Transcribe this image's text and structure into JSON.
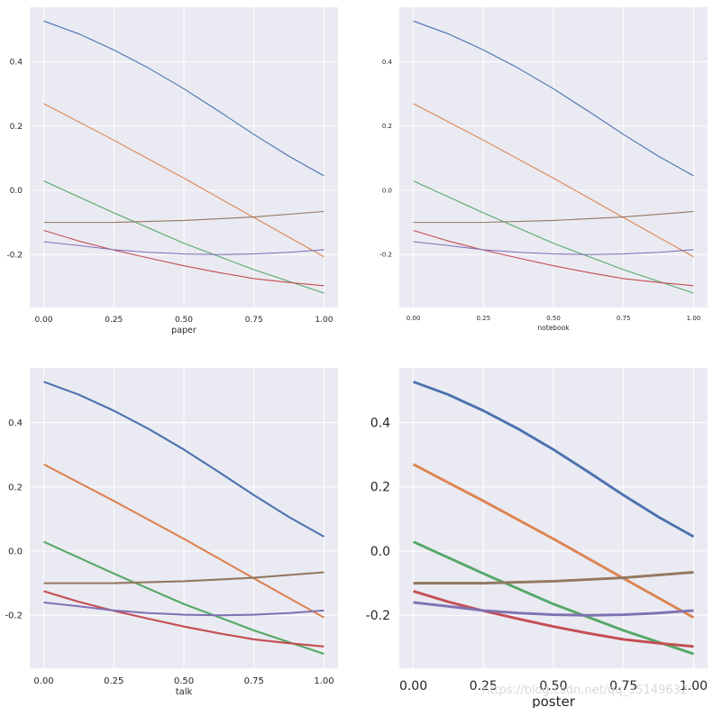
{
  "chart_data": [
    {
      "type": "line",
      "xlabel": "paper",
      "xlim": [
        -0.05,
        1.05
      ],
      "ylim": [
        -0.365,
        0.57
      ],
      "xticks": [
        "0.00",
        "0.25",
        "0.50",
        "0.75",
        "1.00"
      ],
      "yticks": [
        "-0.2",
        "0.0",
        "0.2",
        "0.4"
      ],
      "grid": true,
      "series": [
        {
          "color": "#4c72b0",
          "x": [
            0,
            0.125,
            0.25,
            0.375,
            0.5,
            0.625,
            0.75,
            0.875,
            1
          ],
          "y": [
            0.527,
            0.487,
            0.437,
            0.38,
            0.316,
            0.246,
            0.174,
            0.106,
            0.045
          ]
        },
        {
          "color": "#dd8452",
          "x": [
            0,
            0.25,
            0.5,
            0.75,
            1
          ],
          "y": [
            0.27,
            0.156,
            0.038,
            -0.085,
            -0.207
          ]
        },
        {
          "color": "#55a868",
          "x": [
            0,
            0.25,
            0.5,
            0.75,
            1
          ],
          "y": [
            0.029,
            -0.07,
            -0.165,
            -0.247,
            -0.32
          ]
        },
        {
          "color": "#c44e52",
          "x": [
            0,
            0.125,
            0.25,
            0.375,
            0.5,
            0.625,
            0.75,
            0.875,
            1
          ],
          "y": [
            -0.125,
            -0.158,
            -0.186,
            -0.211,
            -0.235,
            -0.256,
            -0.275,
            -0.287,
            -0.297
          ]
        },
        {
          "color": "#8172b3",
          "x": [
            0,
            0.125,
            0.25,
            0.375,
            0.5,
            0.625,
            0.75,
            0.875,
            1
          ],
          "y": [
            -0.16,
            -0.172,
            -0.185,
            -0.193,
            -0.198,
            -0.2,
            -0.198,
            -0.193,
            -0.185
          ]
        },
        {
          "color": "#937860",
          "x": [
            0,
            0.25,
            0.5,
            0.75,
            1
          ],
          "y": [
            -0.1,
            -0.1,
            -0.094,
            -0.083,
            -0.066
          ]
        }
      ]
    },
    {
      "type": "line",
      "xlabel": "notebook",
      "xlim": [
        -0.05,
        1.05
      ],
      "ylim": [
        -0.365,
        0.57
      ],
      "xticks": [
        "0.00",
        "0.25",
        "0.50",
        "0.75",
        "1.00"
      ],
      "yticks": [
        "-0.2",
        "0.0",
        "0.2",
        "0.4"
      ],
      "grid": true,
      "series": [
        {
          "color": "#4c72b0",
          "x": [
            0,
            0.125,
            0.25,
            0.375,
            0.5,
            0.625,
            0.75,
            0.875,
            1
          ],
          "y": [
            0.527,
            0.487,
            0.437,
            0.38,
            0.316,
            0.246,
            0.174,
            0.106,
            0.045
          ]
        },
        {
          "color": "#dd8452",
          "x": [
            0,
            0.25,
            0.5,
            0.75,
            1
          ],
          "y": [
            0.27,
            0.156,
            0.038,
            -0.085,
            -0.207
          ]
        },
        {
          "color": "#55a868",
          "x": [
            0,
            0.25,
            0.5,
            0.75,
            1
          ],
          "y": [
            0.029,
            -0.07,
            -0.165,
            -0.247,
            -0.32
          ]
        },
        {
          "color": "#c44e52",
          "x": [
            0,
            0.125,
            0.25,
            0.375,
            0.5,
            0.625,
            0.75,
            0.875,
            1
          ],
          "y": [
            -0.125,
            -0.158,
            -0.186,
            -0.211,
            -0.235,
            -0.256,
            -0.275,
            -0.287,
            -0.297
          ]
        },
        {
          "color": "#8172b3",
          "x": [
            0,
            0.125,
            0.25,
            0.375,
            0.5,
            0.625,
            0.75,
            0.875,
            1
          ],
          "y": [
            -0.16,
            -0.172,
            -0.185,
            -0.193,
            -0.198,
            -0.2,
            -0.198,
            -0.193,
            -0.185
          ]
        },
        {
          "color": "#937860",
          "x": [
            0,
            0.25,
            0.5,
            0.75,
            1
          ],
          "y": [
            -0.1,
            -0.1,
            -0.094,
            -0.083,
            -0.066
          ]
        }
      ]
    },
    {
      "type": "line",
      "xlabel": "talk",
      "xlim": [
        -0.05,
        1.05
      ],
      "ylim": [
        -0.365,
        0.57
      ],
      "xticks": [
        "0.00",
        "0.25",
        "0.50",
        "0.75",
        "1.00"
      ],
      "yticks": [
        "-0.2",
        "0.0",
        "0.2",
        "0.4"
      ],
      "grid": true,
      "series": [
        {
          "color": "#4c72b0",
          "x": [
            0,
            0.125,
            0.25,
            0.375,
            0.5,
            0.625,
            0.75,
            0.875,
            1
          ],
          "y": [
            0.527,
            0.487,
            0.437,
            0.38,
            0.316,
            0.246,
            0.174,
            0.106,
            0.045
          ]
        },
        {
          "color": "#dd8452",
          "x": [
            0,
            0.25,
            0.5,
            0.75,
            1
          ],
          "y": [
            0.27,
            0.156,
            0.038,
            -0.085,
            -0.207
          ]
        },
        {
          "color": "#55a868",
          "x": [
            0,
            0.25,
            0.5,
            0.75,
            1
          ],
          "y": [
            0.029,
            -0.07,
            -0.165,
            -0.247,
            -0.32
          ]
        },
        {
          "color": "#c44e52",
          "x": [
            0,
            0.125,
            0.25,
            0.375,
            0.5,
            0.625,
            0.75,
            0.875,
            1
          ],
          "y": [
            -0.125,
            -0.158,
            -0.186,
            -0.211,
            -0.235,
            -0.256,
            -0.275,
            -0.287,
            -0.297
          ]
        },
        {
          "color": "#8172b3",
          "x": [
            0,
            0.125,
            0.25,
            0.375,
            0.5,
            0.625,
            0.75,
            0.875,
            1
          ],
          "y": [
            -0.16,
            -0.172,
            -0.185,
            -0.193,
            -0.198,
            -0.2,
            -0.198,
            -0.193,
            -0.185
          ]
        },
        {
          "color": "#937860",
          "x": [
            0,
            0.25,
            0.5,
            0.75,
            1
          ],
          "y": [
            -0.1,
            -0.1,
            -0.094,
            -0.083,
            -0.066
          ]
        }
      ]
    },
    {
      "type": "line",
      "xlabel": "poster",
      "xlim": [
        -0.05,
        1.05
      ],
      "ylim": [
        -0.365,
        0.57
      ],
      "xticks": [
        "0.00",
        "0.25",
        "0.50",
        "0.75",
        "1.00"
      ],
      "yticks": [
        "-0.2",
        "0.0",
        "0.2",
        "0.4"
      ],
      "grid": true,
      "series": [
        {
          "color": "#4c72b0",
          "x": [
            0,
            0.125,
            0.25,
            0.375,
            0.5,
            0.625,
            0.75,
            0.875,
            1
          ],
          "y": [
            0.527,
            0.487,
            0.437,
            0.38,
            0.316,
            0.246,
            0.174,
            0.106,
            0.045
          ]
        },
        {
          "color": "#dd8452",
          "x": [
            0,
            0.25,
            0.5,
            0.75,
            1
          ],
          "y": [
            0.27,
            0.156,
            0.038,
            -0.085,
            -0.207
          ]
        },
        {
          "color": "#55a868",
          "x": [
            0,
            0.25,
            0.5,
            0.75,
            1
          ],
          "y": [
            0.029,
            -0.07,
            -0.165,
            -0.247,
            -0.32
          ]
        },
        {
          "color": "#c44e52",
          "x": [
            0,
            0.125,
            0.25,
            0.375,
            0.5,
            0.625,
            0.75,
            0.875,
            1
          ],
          "y": [
            -0.125,
            -0.158,
            -0.186,
            -0.211,
            -0.235,
            -0.256,
            -0.275,
            -0.287,
            -0.297
          ]
        },
        {
          "color": "#8172b3",
          "x": [
            0,
            0.125,
            0.25,
            0.375,
            0.5,
            0.625,
            0.75,
            0.875,
            1
          ],
          "y": [
            -0.16,
            -0.172,
            -0.185,
            -0.193,
            -0.198,
            -0.2,
            -0.198,
            -0.193,
            -0.185
          ]
        },
        {
          "color": "#937860",
          "x": [
            0,
            0.25,
            0.5,
            0.75,
            1
          ],
          "y": [
            -0.1,
            -0.1,
            -0.094,
            -0.083,
            -0.066
          ]
        }
      ]
    }
  ],
  "watermark": "https://blog.csdn.net/qq_35149632"
}
